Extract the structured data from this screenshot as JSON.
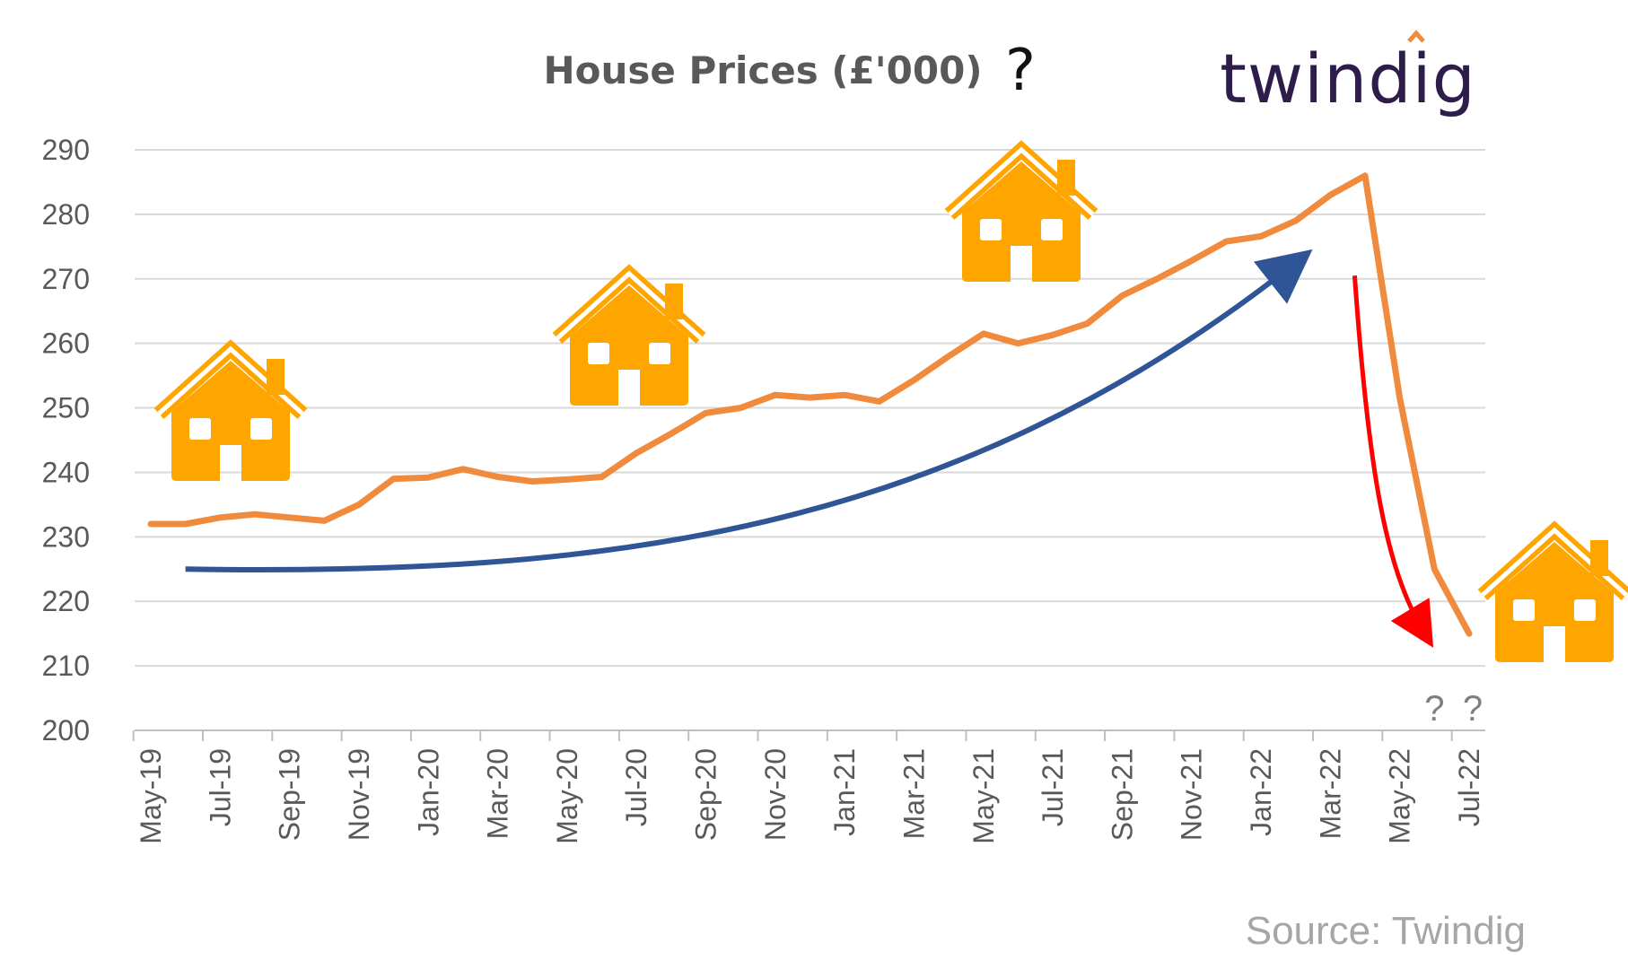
{
  "chart_data": {
    "type": "line",
    "title": "House Prices  (£'000)",
    "title_annotation": "?",
    "brand": "twindig",
    "source": "Source: Twindig",
    "xlabel": "",
    "ylabel": "",
    "ylim": [
      200,
      290
    ],
    "yticks": [
      290,
      280,
      270,
      260,
      250,
      240,
      230,
      220,
      210,
      200
    ],
    "grid": true,
    "categories": [
      "May-19",
      "Jun-19",
      "Jul-19",
      "Aug-19",
      "Sep-19",
      "Oct-19",
      "Nov-19",
      "Dec-19",
      "Jan-20",
      "Feb-20",
      "Mar-20",
      "Apr-20",
      "May-20",
      "Jun-20",
      "Jul-20",
      "Aug-20",
      "Sep-20",
      "Oct-20",
      "Nov-20",
      "Dec-20",
      "Jan-21",
      "Feb-21",
      "Mar-21",
      "Apr-21",
      "May-21",
      "Jun-21",
      "Jul-21",
      "Aug-21",
      "Sep-21",
      "Oct-21",
      "Nov-21",
      "Dec-21",
      "Jan-22",
      "Feb-22",
      "Mar-22",
      "Apr-22",
      "May-22",
      "Jun-22",
      "Jul-22"
    ],
    "tick_labels": [
      "May-19",
      "Jul-19",
      "Sep-19",
      "Nov-19",
      "Jan-20",
      "Mar-20",
      "May-20",
      "Jul-20",
      "Sep-20",
      "Nov-20",
      "Jan-21",
      "Mar-21",
      "May-21",
      "Jul-21",
      "Sep-21",
      "Nov-21",
      "Jan-22",
      "Mar-22",
      "May-22",
      "Jul-22"
    ],
    "series": [
      {
        "name": "House Prices",
        "color": "#f08a3c",
        "values": [
          232,
          232,
          233,
          233.5,
          233,
          232.5,
          235,
          239,
          239.2,
          240.5,
          239.3,
          238.6,
          238.9,
          239.3,
          243,
          246,
          249.2,
          250,
          252,
          251.6,
          252,
          251,
          254.3,
          258,
          261.5,
          260,
          261.3,
          263.1,
          267.4,
          270,
          272.8,
          275.8,
          276.6,
          279,
          283,
          286,
          251.5,
          225,
          215
        ]
      }
    ],
    "trend_arrow": {
      "name": "upward trend",
      "color": "#2f5597"
    },
    "drop_arrow": {
      "name": "forecast fall",
      "color": "#ff0000"
    },
    "annotations": [
      "?",
      "?"
    ],
    "icons": [
      "house-icon",
      "house-icon",
      "house-icon",
      "house-icon"
    ],
    "icon_color": "#ffa500"
  }
}
